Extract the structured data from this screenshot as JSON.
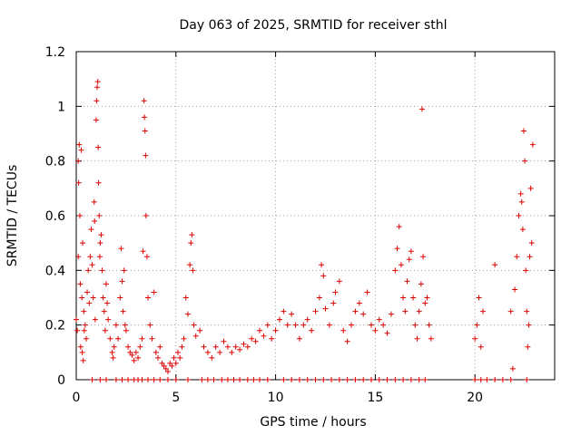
{
  "chart_data": {
    "type": "scatter",
    "title": "Day 063 of 2025, SRMTID for receiver sthl",
    "xlabel": "GPS time / hours",
    "ylabel": "SRMTID / TECUs",
    "xlim": [
      0,
      24
    ],
    "ylim": [
      0,
      1.2
    ],
    "xticks": [
      0,
      5,
      10,
      15,
      20
    ],
    "xtick_labels": [
      "0",
      "5",
      "10",
      "15",
      "20"
    ],
    "yticks": [
      0,
      0.2,
      0.4,
      0.6,
      0.8,
      1.0,
      1.2
    ],
    "ytick_labels": [
      "0",
      "0.2",
      "0.4",
      "0.6",
      "0.8",
      "1",
      "1.2"
    ],
    "grid": true,
    "marker": "+",
    "series": [
      {
        "name": "SRMTID",
        "color": "#dd0000",
        "points": [
          [
            0.0,
            0.22
          ],
          [
            0.05,
            0.18
          ],
          [
            0.1,
            0.45
          ],
          [
            0.1,
            0.8
          ],
          [
            0.12,
            0.72
          ],
          [
            0.15,
            0.86
          ],
          [
            0.18,
            0.6
          ],
          [
            0.2,
            0.35
          ],
          [
            0.22,
            0.12
          ],
          [
            0.25,
            0.84
          ],
          [
            0.28,
            0.3
          ],
          [
            0.3,
            0.1
          ],
          [
            0.32,
            0.5
          ],
          [
            0.35,
            0.07
          ],
          [
            0.38,
            0.25
          ],
          [
            0.4,
            0.18
          ],
          [
            0.45,
            0.2
          ],
          [
            0.5,
            0.15
          ],
          [
            0.55,
            0.32
          ],
          [
            0.6,
            0.4
          ],
          [
            0.65,
            0.28
          ],
          [
            0.7,
            0.45
          ],
          [
            0.75,
            0.55
          ],
          [
            0.8,
            0.42
          ],
          [
            0.85,
            0.3
          ],
          [
            0.9,
            0.65
          ],
          [
            0.92,
            0.58
          ],
          [
            0.95,
            0.22
          ],
          [
            1.0,
            0.95
          ],
          [
            1.02,
            1.02
          ],
          [
            1.05,
            1.07
          ],
          [
            1.08,
            1.09
          ],
          [
            1.1,
            0.85
          ],
          [
            1.12,
            0.72
          ],
          [
            1.15,
            0.6
          ],
          [
            1.18,
            0.45
          ],
          [
            1.2,
            0.5
          ],
          [
            1.25,
            0.53
          ],
          [
            1.3,
            0.4
          ],
          [
            1.35,
            0.3
          ],
          [
            1.4,
            0.25
          ],
          [
            1.45,
            0.18
          ],
          [
            1.5,
            0.35
          ],
          [
            1.55,
            0.28
          ],
          [
            1.6,
            0.22
          ],
          [
            1.7,
            0.15
          ],
          [
            1.8,
            0.1
          ],
          [
            1.85,
            0.08
          ],
          [
            1.9,
            0.12
          ],
          [
            2.0,
            0.2
          ],
          [
            2.1,
            0.15
          ],
          [
            2.2,
            0.3
          ],
          [
            2.25,
            0.48
          ],
          [
            2.3,
            0.36
          ],
          [
            2.35,
            0.25
          ],
          [
            2.4,
            0.4
          ],
          [
            2.45,
            0.2
          ],
          [
            2.5,
            0.18
          ],
          [
            2.6,
            0.12
          ],
          [
            2.7,
            0.1
          ],
          [
            2.8,
            0.09
          ],
          [
            2.9,
            0.07
          ],
          [
            3.0,
            0.1
          ],
          [
            3.1,
            0.08
          ],
          [
            3.2,
            0.12
          ],
          [
            3.3,
            0.15
          ],
          [
            3.35,
            0.47
          ],
          [
            3.4,
            1.02
          ],
          [
            3.42,
            0.96
          ],
          [
            3.45,
            0.91
          ],
          [
            3.48,
            0.82
          ],
          [
            3.5,
            0.6
          ],
          [
            3.55,
            0.45
          ],
          [
            3.6,
            0.3
          ],
          [
            3.7,
            0.2
          ],
          [
            3.8,
            0.15
          ],
          [
            3.9,
            0.32
          ],
          [
            4.0,
            0.1
          ],
          [
            4.1,
            0.08
          ],
          [
            4.2,
            0.12
          ],
          [
            4.3,
            0.06
          ],
          [
            4.4,
            0.05
          ],
          [
            4.5,
            0.04
          ],
          [
            4.6,
            0.03
          ],
          [
            4.7,
            0.06
          ],
          [
            4.8,
            0.05
          ],
          [
            4.9,
            0.08
          ],
          [
            5.0,
            0.06
          ],
          [
            5.1,
            0.1
          ],
          [
            5.2,
            0.08
          ],
          [
            5.3,
            0.12
          ],
          [
            5.4,
            0.15
          ],
          [
            5.5,
            0.3
          ],
          [
            5.6,
            0.24
          ],
          [
            5.7,
            0.42
          ],
          [
            5.75,
            0.5
          ],
          [
            5.8,
            0.53
          ],
          [
            5.85,
            0.4
          ],
          [
            5.9,
            0.2
          ],
          [
            6.0,
            0.16
          ],
          [
            6.2,
            0.18
          ],
          [
            6.4,
            0.12
          ],
          [
            6.6,
            0.1
          ],
          [
            6.8,
            0.08
          ],
          [
            7.0,
            0.12
          ],
          [
            7.2,
            0.1
          ],
          [
            7.4,
            0.14
          ],
          [
            7.6,
            0.12
          ],
          [
            7.8,
            0.1
          ],
          [
            8.0,
            0.12
          ],
          [
            8.2,
            0.11
          ],
          [
            8.4,
            0.13
          ],
          [
            8.6,
            0.12
          ],
          [
            8.8,
            0.15
          ],
          [
            9.0,
            0.14
          ],
          [
            9.2,
            0.18
          ],
          [
            9.4,
            0.16
          ],
          [
            9.6,
            0.2
          ],
          [
            9.8,
            0.15
          ],
          [
            10.0,
            0.18
          ],
          [
            10.2,
            0.22
          ],
          [
            10.4,
            0.25
          ],
          [
            10.6,
            0.2
          ],
          [
            10.8,
            0.24
          ],
          [
            11.0,
            0.2
          ],
          [
            11.2,
            0.15
          ],
          [
            11.4,
            0.2
          ],
          [
            11.6,
            0.22
          ],
          [
            11.8,
            0.18
          ],
          [
            12.0,
            0.25
          ],
          [
            12.2,
            0.3
          ],
          [
            12.3,
            0.42
          ],
          [
            12.4,
            0.38
          ],
          [
            12.5,
            0.26
          ],
          [
            12.7,
            0.2
          ],
          [
            12.9,
            0.28
          ],
          [
            13.0,
            0.32
          ],
          [
            13.2,
            0.36
          ],
          [
            13.4,
            0.18
          ],
          [
            13.6,
            0.14
          ],
          [
            13.8,
            0.2
          ],
          [
            14.0,
            0.25
          ],
          [
            14.2,
            0.28
          ],
          [
            14.4,
            0.24
          ],
          [
            14.6,
            0.32
          ],
          [
            14.8,
            0.2
          ],
          [
            15.0,
            0.18
          ],
          [
            15.2,
            0.22
          ],
          [
            15.4,
            0.2
          ],
          [
            15.6,
            0.17
          ],
          [
            15.8,
            0.24
          ],
          [
            16.0,
            0.4
          ],
          [
            16.1,
            0.48
          ],
          [
            16.2,
            0.56
          ],
          [
            16.3,
            0.42
          ],
          [
            16.4,
            0.3
          ],
          [
            16.5,
            0.25
          ],
          [
            16.6,
            0.36
          ],
          [
            16.7,
            0.44
          ],
          [
            16.8,
            0.47
          ],
          [
            16.9,
            0.3
          ],
          [
            17.0,
            0.2
          ],
          [
            17.1,
            0.15
          ],
          [
            17.2,
            0.25
          ],
          [
            17.3,
            0.35
          ],
          [
            17.35,
            0.99
          ],
          [
            17.4,
            0.45
          ],
          [
            17.5,
            0.28
          ],
          [
            17.6,
            0.3
          ],
          [
            17.7,
            0.2
          ],
          [
            17.8,
            0.15
          ],
          [
            20.0,
            0.15
          ],
          [
            20.1,
            0.2
          ],
          [
            20.2,
            0.3
          ],
          [
            20.3,
            0.12
          ],
          [
            20.4,
            0.25
          ],
          [
            21.0,
            0.42
          ],
          [
            21.8,
            0.25
          ],
          [
            21.9,
            0.04
          ],
          [
            22.0,
            0.33
          ],
          [
            22.1,
            0.45
          ],
          [
            22.2,
            0.6
          ],
          [
            22.3,
            0.68
          ],
          [
            22.35,
            0.65
          ],
          [
            22.4,
            0.55
          ],
          [
            22.45,
            0.91
          ],
          [
            22.5,
            0.8
          ],
          [
            22.55,
            0.4
          ],
          [
            22.6,
            0.25
          ],
          [
            22.65,
            0.12
          ],
          [
            22.7,
            0.2
          ],
          [
            22.75,
            0.45
          ],
          [
            22.8,
            0.7
          ],
          [
            22.85,
            0.5
          ],
          [
            22.9,
            0.86
          ]
        ],
        "zero_points_x": [
          0.8,
          1.2,
          1.5,
          2.0,
          2.3,
          2.6,
          2.9,
          3.1,
          3.3,
          3.6,
          3.9,
          4.2,
          4.6,
          5.0,
          5.6,
          6.3,
          6.6,
          6.9,
          7.3,
          7.6,
          7.9,
          8.2,
          8.6,
          8.9,
          9.2,
          9.6,
          10.4,
          10.8,
          11.2,
          11.6,
          12.0,
          12.4,
          12.8,
          13.2,
          13.6,
          14.0,
          14.4,
          14.8,
          15.2,
          15.6,
          16.0,
          16.4,
          16.8,
          17.2,
          17.5,
          20.0,
          20.3,
          20.6,
          21.0,
          21.4,
          21.8,
          22.6
        ]
      }
    ]
  }
}
